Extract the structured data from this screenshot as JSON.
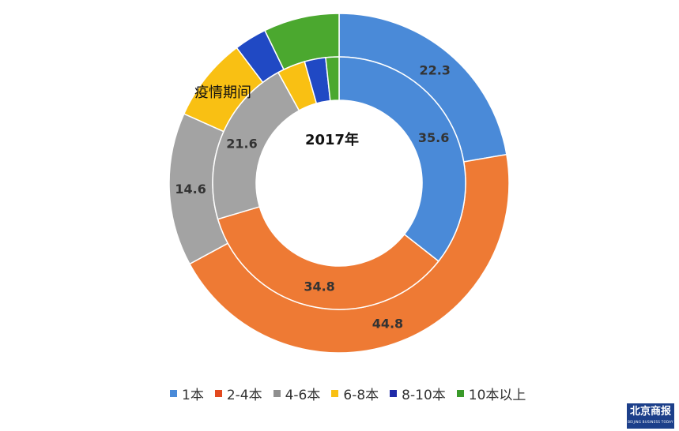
{
  "chart_data": {
    "type": "donut",
    "categories": [
      "1本",
      "2-4本",
      "4-6本",
      "6-8本",
      "8-10本",
      "10本以上"
    ],
    "colors": [
      "#4a8ad8",
      "#ee7a34",
      "#a3a3a3",
      "#f9c013",
      "#2049c4",
      "#4ba82f"
    ],
    "series": [
      {
        "name": "2017年",
        "ring": "inner",
        "values": [
          35.6,
          34.8,
          21.6,
          3.6,
          2.7,
          1.7
        ]
      },
      {
        "name": "疫情期间",
        "ring": "outer",
        "values": [
          22.3,
          44.8,
          14.6,
          8.0,
          3.1,
          7.2
        ]
      }
    ],
    "data_labels": {
      "inner": [
        "35.6",
        "34.8",
        "21.6",
        "",
        "",
        ""
      ],
      "outer": [
        "22.3",
        "44.8",
        "14.6",
        "",
        "",
        ""
      ]
    },
    "legend_position": "bottom"
  },
  "legend": {
    "items": [
      {
        "label": "1本",
        "color": "#4a8ad8"
      },
      {
        "label": "2-4本",
        "color": "#e2491f"
      },
      {
        "label": "4-6本",
        "color": "#8f8f8f"
      },
      {
        "label": "6-8本",
        "color": "#f9c013"
      },
      {
        "label": "8-10本",
        "color": "#1f2aa8"
      },
      {
        "label": "10本以上",
        "color": "#3a9a2a"
      }
    ]
  },
  "watermark": {
    "text": "北京商报",
    "subtext": "BEIJING BUSINESS TODAY"
  }
}
